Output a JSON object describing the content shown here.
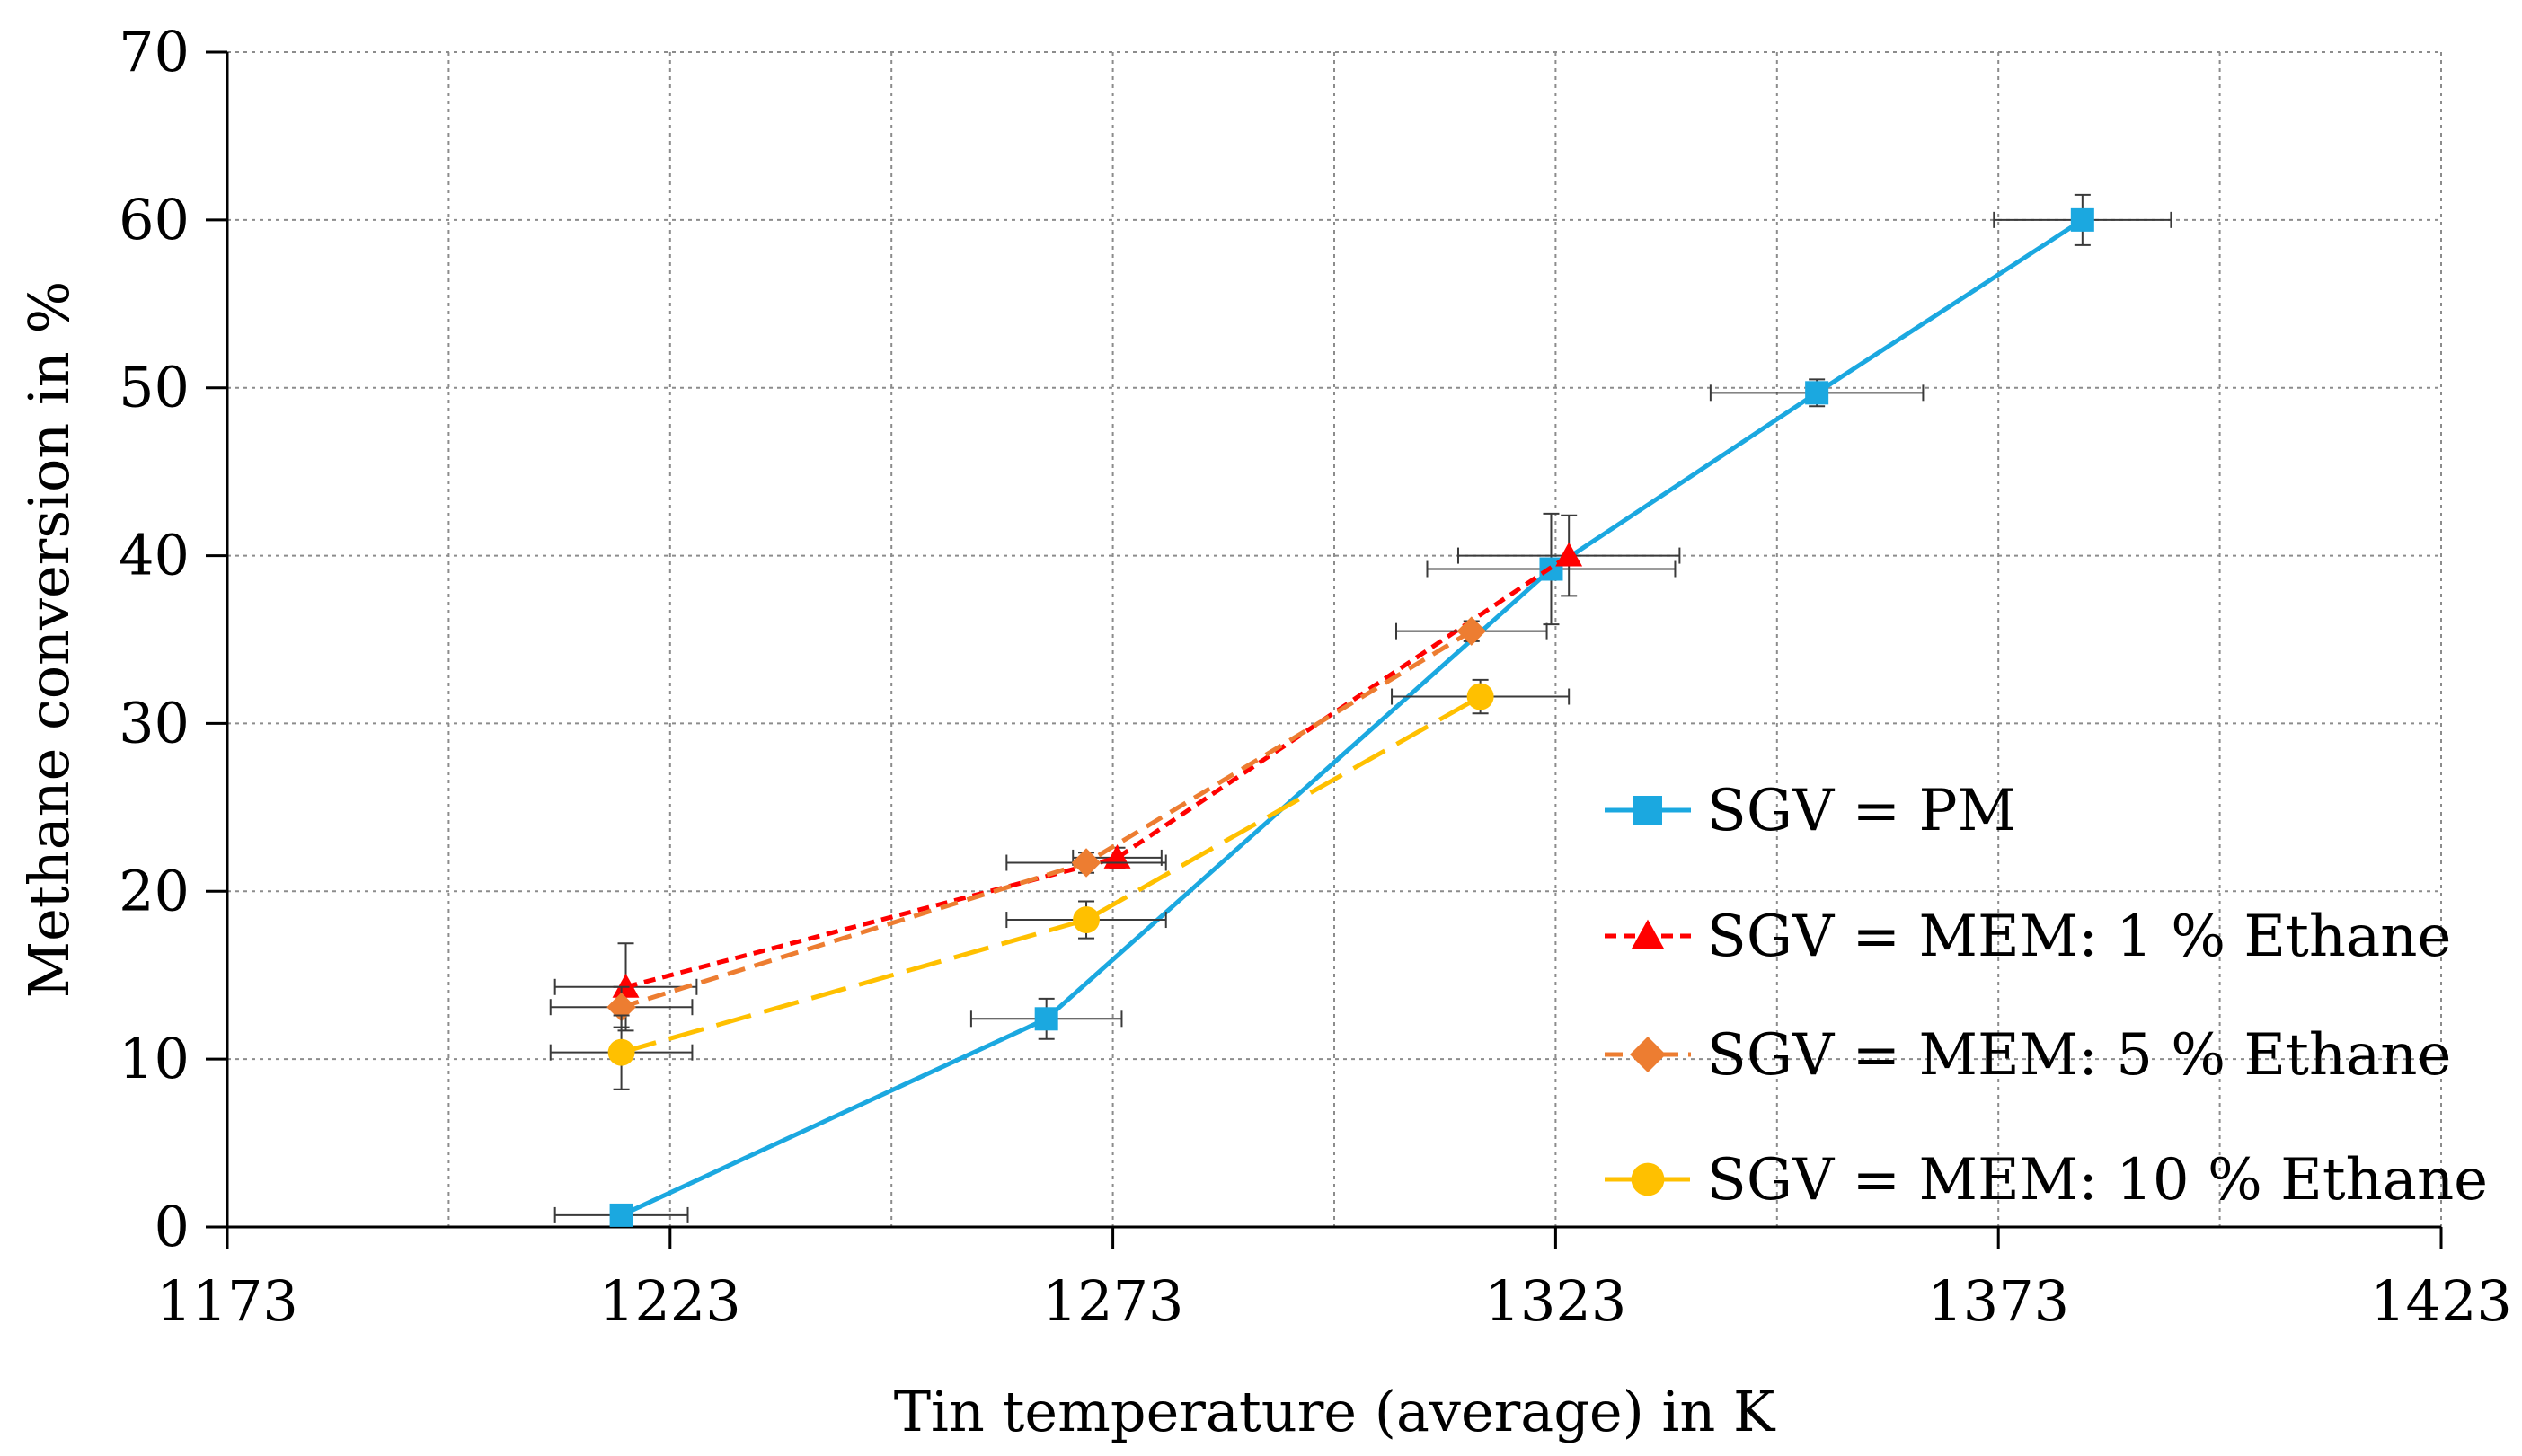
{
  "chart_data": {
    "type": "line",
    "title": "",
    "xlabel": "Tin temperature (average) in K",
    "ylabel": "Methane conversion in %",
    "xlim": [
      1173,
      1423
    ],
    "ylim": [
      0,
      70
    ],
    "x_ticks": [
      1173,
      1223,
      1273,
      1323,
      1373,
      1423
    ],
    "x_tick_labels": [
      "1173",
      "1223",
      "1273",
      "1323",
      "1373",
      "1423"
    ],
    "y_ticks": [
      0,
      10,
      20,
      30,
      40,
      50,
      60,
      70
    ],
    "y_tick_labels": [
      "0",
      "10",
      "20",
      "30",
      "40",
      "50",
      "60",
      "70"
    ],
    "x_minor_gridlines": [
      1198,
      1248,
      1298,
      1348,
      1398
    ],
    "grid": true,
    "legend_position": "right",
    "series": [
      {
        "name": "SGV = PM",
        "color": "#1BA8E0",
        "marker": "square",
        "line": "solid",
        "points": [
          {
            "x": 1217.5,
            "y": 0.7,
            "xerr": 7.5,
            "yerr": 0.6
          },
          {
            "x": 1265.5,
            "y": 12.4,
            "xerr": 8.5,
            "yerr": 1.2
          },
          {
            "x": 1322.5,
            "y": 39.2,
            "xerr": 14,
            "yerr": 3.3
          },
          {
            "x": 1352.5,
            "y": 49.7,
            "xerr": 12,
            "yerr": 0.8
          },
          {
            "x": 1382.5,
            "y": 60.0,
            "xerr": 10,
            "yerr": 1.5
          }
        ]
      },
      {
        "name": "SGV = MEM: 1 % Ethane",
        "color": "#FF0000",
        "marker": "triangle",
        "line": "short-dash",
        "points": [
          {
            "x": 1218.0,
            "y": 14.3,
            "xerr": 8,
            "yerr": 2.6
          },
          {
            "x": 1273.5,
            "y": 22.0,
            "xerr": 5,
            "yerr": 0.6
          },
          {
            "x": 1324.5,
            "y": 40.0,
            "xerr": 12.5,
            "yerr": 2.4
          }
        ]
      },
      {
        "name": "SGV = MEM: 5 % Ethane",
        "color": "#ED7D31",
        "marker": "diamond",
        "line": "medium-dash",
        "points": [
          {
            "x": 1217.5,
            "y": 13.1,
            "xerr": 8,
            "yerr": 1.2
          },
          {
            "x": 1270.0,
            "y": 21.7,
            "xerr": 9,
            "yerr": 0.6
          },
          {
            "x": 1313.5,
            "y": 35.5,
            "xerr": 8.5,
            "yerr": 0.6
          }
        ]
      },
      {
        "name": "SGV = MEM: 10 % Ethane",
        "color": "#FFC000",
        "marker": "circle",
        "line": "long-dash",
        "points": [
          {
            "x": 1217.5,
            "y": 10.4,
            "xerr": 8,
            "yerr": 2.2
          },
          {
            "x": 1270.0,
            "y": 18.3,
            "xerr": 9,
            "yerr": 1.1
          },
          {
            "x": 1314.5,
            "y": 31.6,
            "xerr": 10,
            "yerr": 1.0
          }
        ]
      }
    ]
  }
}
